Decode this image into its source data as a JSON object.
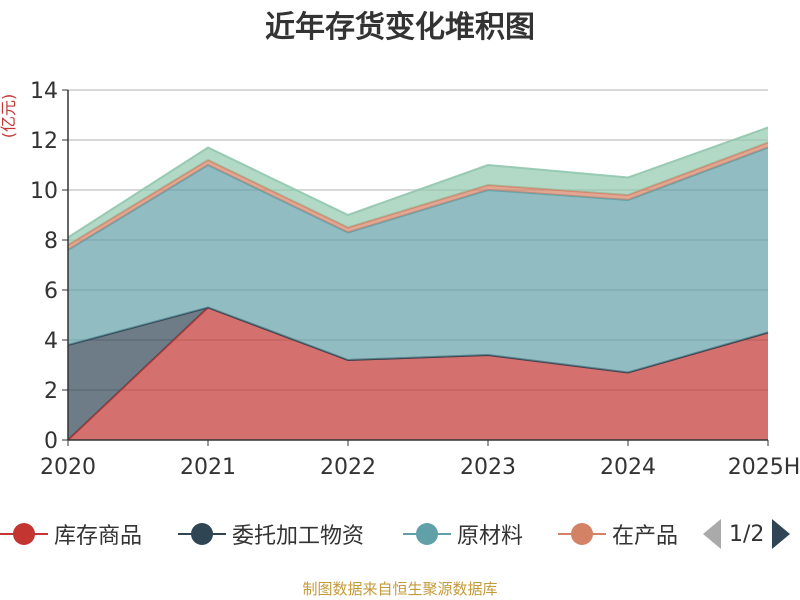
{
  "chart_data": {
    "type": "area",
    "stacked": true,
    "title": "近年存货变化堆积图",
    "ylabel": "(亿元)",
    "categories": [
      "2020",
      "2021",
      "2022",
      "2023",
      "2024",
      "2025H"
    ],
    "ylim": [
      0,
      14
    ],
    "yticks": [
      0,
      2,
      4,
      6,
      8,
      10,
      12,
      14
    ],
    "grid": true,
    "series": [
      {
        "name": "库存商品",
        "color": "#c23531",
        "values": [
          0.0,
          5.3,
          3.2,
          3.4,
          2.7,
          4.3
        ]
      },
      {
        "name": "委托加工物资",
        "color": "#2f4554",
        "values": [
          3.8,
          0.0,
          0.0,
          0.0,
          0.0,
          0.0
        ]
      },
      {
        "name": "原材料",
        "color": "#61a0a8",
        "values": [
          3.8,
          5.7,
          5.1,
          6.6,
          6.9,
          7.4
        ]
      },
      {
        "name": "在产品",
        "color": "#d48265",
        "values": [
          0.2,
          0.2,
          0.2,
          0.2,
          0.2,
          0.2
        ]
      },
      {
        "name": "",
        "color": "#91c7ae",
        "values": [
          0.3,
          0.5,
          0.5,
          0.8,
          0.7,
          0.6
        ]
      }
    ],
    "legend": {
      "position": "bottom",
      "page": "1/2",
      "visible_labels": [
        "库存商品",
        "委托加工物资",
        "原材料",
        "在产品"
      ]
    }
  },
  "footer": "制图数据来自恒生聚源数据库"
}
